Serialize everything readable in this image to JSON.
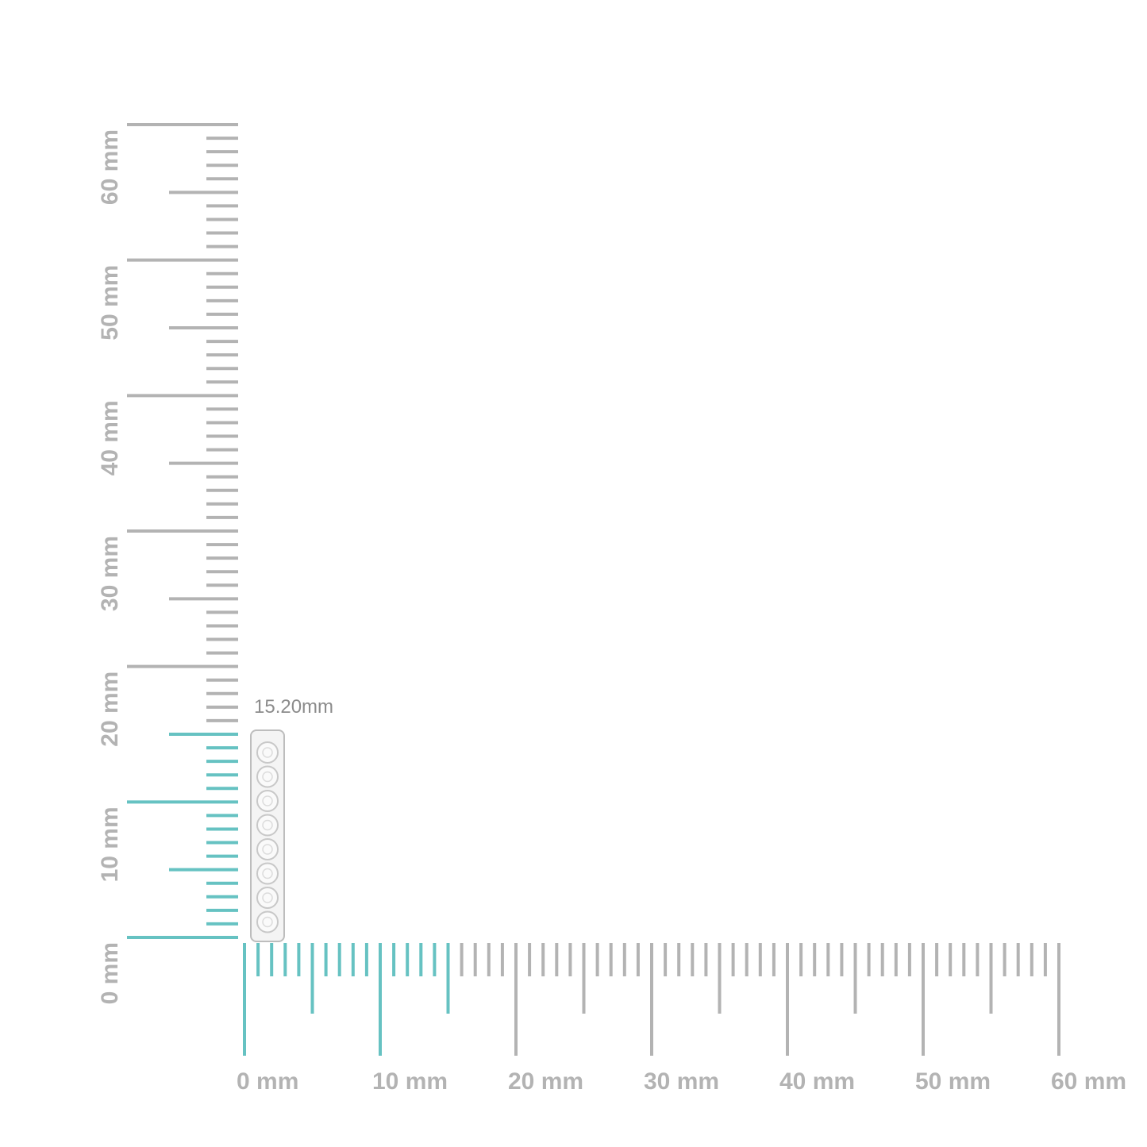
{
  "vertical_ruler": {
    "labels": [
      "0 mm",
      "10 mm",
      "20 mm",
      "30 mm",
      "40 mm",
      "50 mm",
      "60 mm"
    ]
  },
  "horizontal_ruler": {
    "labels": [
      "0 mm",
      "10 mm",
      "20 mm",
      "30 mm",
      "40 mm",
      "50 mm",
      "60 mm"
    ]
  },
  "measurement": {
    "label": "15.20mm"
  }
}
